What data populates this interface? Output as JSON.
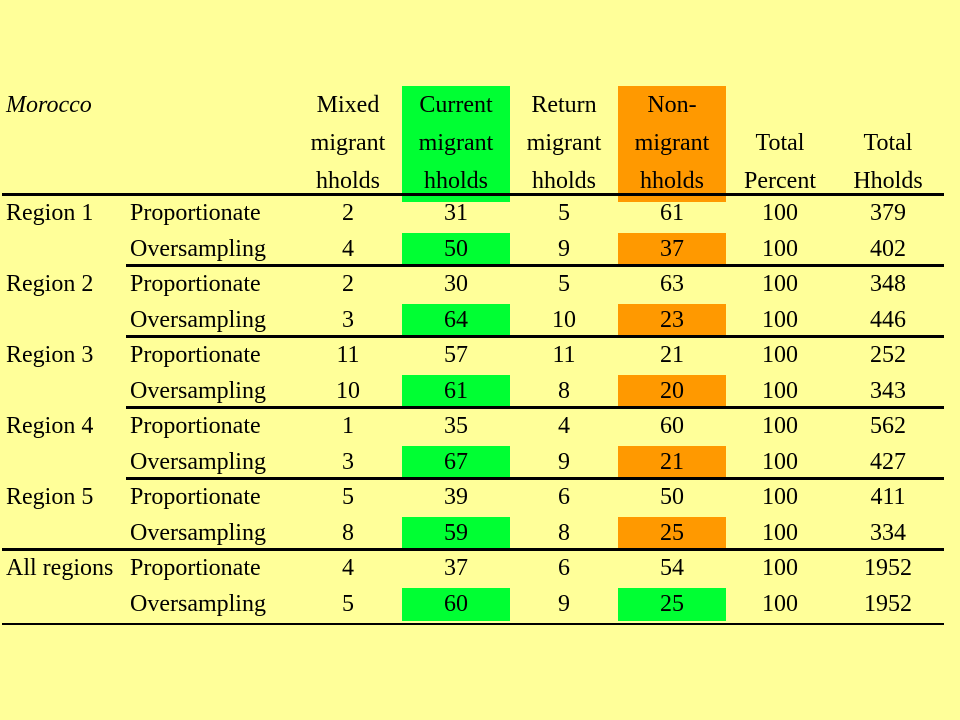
{
  "table": {
    "title": "Morocco",
    "colors": {
      "current_highlight": "#00ff33",
      "nonmigrant_highlight": "#ff9900",
      "background": "#ffff99"
    },
    "headers": [
      {
        "key": "mixed",
        "lines": [
          "Mixed",
          "migrant",
          "hholds"
        ],
        "highlight": "none"
      },
      {
        "key": "current",
        "lines": [
          "Current",
          "migrant",
          "hholds"
        ],
        "highlight": "green"
      },
      {
        "key": "return",
        "lines": [
          "Return",
          "migrant",
          "hholds"
        ],
        "highlight": "none"
      },
      {
        "key": "non",
        "lines": [
          "Non-",
          "migrant",
          "hholds"
        ],
        "highlight": "orange"
      },
      {
        "key": "pct",
        "lines": [
          "",
          "Total",
          "Percent"
        ],
        "highlight": "none"
      },
      {
        "key": "hh",
        "lines": [
          "",
          "Total",
          "Hholds"
        ],
        "highlight": "none"
      }
    ],
    "groups": [
      {
        "region": "Region 1",
        "rows": [
          {
            "type": "Proportionate",
            "values": [
              "2",
              "31",
              "5",
              "61",
              "100",
              "379"
            ],
            "cur_hl": "none",
            "non_hl": "none"
          },
          {
            "type": "Oversampling",
            "values": [
              "4",
              "50",
              "9",
              "37",
              "100",
              "402"
            ],
            "cur_hl": "green",
            "non_hl": "orange"
          }
        ]
      },
      {
        "region": "Region 2",
        "rows": [
          {
            "type": "Proportionate",
            "values": [
              "2",
              "30",
              "5",
              "63",
              "100",
              "348"
            ],
            "cur_hl": "none",
            "non_hl": "none"
          },
          {
            "type": "Oversampling",
            "values": [
              "3",
              "64",
              "10",
              "23",
              "100",
              "446"
            ],
            "cur_hl": "green",
            "non_hl": "orange"
          }
        ]
      },
      {
        "region": "Region 3",
        "rows": [
          {
            "type": "Proportionate",
            "values": [
              "11",
              "57",
              "11",
              "21",
              "100",
              "252"
            ],
            "cur_hl": "none",
            "non_hl": "none"
          },
          {
            "type": "Oversampling",
            "values": [
              "10",
              "61",
              "8",
              "20",
              "100",
              "343"
            ],
            "cur_hl": "green",
            "non_hl": "orange"
          }
        ]
      },
      {
        "region": "Region 4",
        "rows": [
          {
            "type": "Proportionate",
            "values": [
              "1",
              "35",
              "4",
              "60",
              "100",
              "562"
            ],
            "cur_hl": "none",
            "non_hl": "none"
          },
          {
            "type": "Oversampling",
            "values": [
              "3",
              "67",
              "9",
              "21",
              "100",
              "427"
            ],
            "cur_hl": "green",
            "non_hl": "orange"
          }
        ]
      },
      {
        "region": "Region 5",
        "rows": [
          {
            "type": "Proportionate",
            "values": [
              "5",
              "39",
              "6",
              "50",
              "100",
              "411"
            ],
            "cur_hl": "none",
            "non_hl": "none"
          },
          {
            "type": "Oversampling",
            "values": [
              "8",
              "59",
              "8",
              "25",
              "100",
              "334"
            ],
            "cur_hl": "green",
            "non_hl": "orange"
          }
        ]
      },
      {
        "region": "All regions",
        "rows": [
          {
            "type": "Proportionate",
            "values": [
              "4",
              "37",
              "6",
              "54",
              "100",
              "1952"
            ],
            "cur_hl": "none",
            "non_hl": "none"
          },
          {
            "type": "Oversampling",
            "values": [
              "5",
              "60",
              "9",
              "25",
              "100",
              "1952"
            ],
            "cur_hl": "green",
            "non_hl": "green"
          }
        ]
      }
    ]
  }
}
